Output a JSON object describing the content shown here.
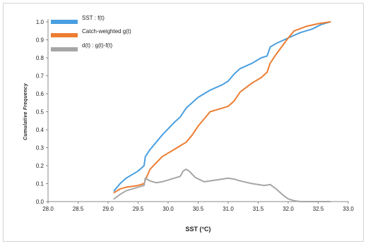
{
  "chart_data": {
    "type": "line",
    "xlabel": "SST (°C)",
    "ylabel": "Cumulative Frequency",
    "xlim": [
      28.0,
      33.0
    ],
    "ylim": [
      0.0,
      1.0
    ],
    "xticks": [
      "28.0",
      "28.5",
      "29.0",
      "29.5",
      "30.0",
      "30.5",
      "31.0",
      "31.5",
      "32.0",
      "32.5",
      "33.0"
    ],
    "yticks": [
      "0.0",
      "0.1",
      "0.2",
      "0.3",
      "0.4",
      "0.5",
      "0.6",
      "0.7",
      "0.8",
      "0.9",
      "1.0"
    ],
    "grid": false,
    "legend_position": "top-left",
    "series": [
      {
        "name": "SST : f(t)",
        "color": "#4a9fe0",
        "x": [
          29.1,
          29.2,
          29.3,
          29.5,
          29.6,
          29.62,
          29.7,
          29.9,
          30.1,
          30.2,
          30.3,
          30.4,
          30.5,
          30.7,
          30.9,
          31.0,
          31.1,
          31.2,
          31.4,
          31.55,
          31.65,
          31.7,
          31.8,
          32.0,
          32.2,
          32.4,
          32.55,
          32.7
        ],
        "y": [
          0.06,
          0.1,
          0.13,
          0.17,
          0.2,
          0.25,
          0.29,
          0.37,
          0.44,
          0.47,
          0.52,
          0.55,
          0.58,
          0.62,
          0.65,
          0.67,
          0.71,
          0.74,
          0.77,
          0.8,
          0.81,
          0.86,
          0.88,
          0.91,
          0.94,
          0.96,
          0.985,
          1.0
        ]
      },
      {
        "name": "Catch-weighted g(t)",
        "color": "#ed7d31",
        "x": [
          29.1,
          29.2,
          29.3,
          29.5,
          29.6,
          29.62,
          29.7,
          29.9,
          30.1,
          30.2,
          30.3,
          30.4,
          30.5,
          30.7,
          30.9,
          31.0,
          31.1,
          31.2,
          31.4,
          31.55,
          31.65,
          31.7,
          31.8,
          32.0,
          32.1,
          32.3,
          32.5,
          32.7
        ],
        "y": [
          0.05,
          0.07,
          0.08,
          0.09,
          0.1,
          0.12,
          0.18,
          0.25,
          0.29,
          0.31,
          0.33,
          0.37,
          0.42,
          0.5,
          0.52,
          0.53,
          0.56,
          0.61,
          0.66,
          0.69,
          0.72,
          0.77,
          0.82,
          0.91,
          0.95,
          0.975,
          0.99,
          1.0
        ]
      },
      {
        "name": "d(t) : g(t)-f(t)",
        "color": "#a6a6a6",
        "x": [
          29.1,
          29.2,
          29.3,
          29.5,
          29.6,
          29.62,
          29.7,
          29.8,
          29.9,
          30.0,
          30.1,
          30.2,
          30.25,
          30.3,
          30.35,
          30.45,
          30.6,
          30.8,
          31.0,
          31.1,
          31.2,
          31.4,
          31.6,
          31.7,
          31.8,
          31.9,
          32.0,
          32.1,
          32.2,
          32.4,
          32.6,
          32.7
        ],
        "y": [
          0.015,
          0.04,
          0.06,
          0.08,
          0.09,
          0.13,
          0.115,
          0.105,
          0.11,
          0.12,
          0.13,
          0.14,
          0.17,
          0.18,
          0.17,
          0.135,
          0.11,
          0.12,
          0.13,
          0.125,
          0.115,
          0.1,
          0.09,
          0.095,
          0.07,
          0.04,
          0.015,
          0.005,
          0.0,
          0.0,
          0.0,
          0.0
        ]
      }
    ]
  }
}
